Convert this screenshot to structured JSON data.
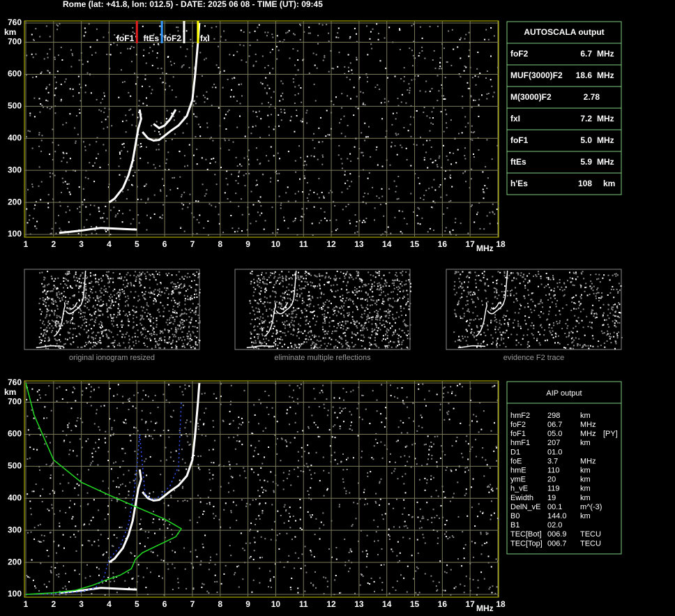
{
  "header": "Rome (lat: +41.8, lon: 012.5) - DATE: 2025 06 08 - TIME (UT): 09:45",
  "chart_data": [
    {
      "type": "line",
      "y_unit": "km",
      "x_unit": "MHz",
      "xlim": [
        1,
        18
      ],
      "xticks": [
        1,
        2,
        3,
        4,
        5,
        6,
        7,
        8,
        9,
        10,
        11,
        12,
        13,
        14,
        15,
        16,
        17,
        18
      ],
      "ylim": [
        100,
        760
      ],
      "yticks": [
        100,
        200,
        300,
        400,
        500,
        600,
        700,
        760
      ],
      "grid": true,
      "series": [
        {
          "color": "#ffffff",
          "x": [
            2.2,
            2.6,
            3.0,
            3.4,
            3.7,
            4.0,
            4.5,
            5.0
          ],
          "values": [
            105,
            108,
            112,
            117,
            120,
            119,
            117,
            115
          ]
        },
        {
          "color": "#ffffff",
          "x": [
            4.0,
            4.2,
            4.5,
            4.7,
            4.85,
            4.95,
            5.05,
            5.15,
            5.1
          ],
          "values": [
            200,
            212,
            245,
            285,
            330,
            380,
            430,
            460,
            490
          ]
        },
        {
          "color": "#ffffff",
          "x": [
            5.2,
            5.4,
            5.6,
            5.8,
            6.0,
            6.2,
            6.5,
            6.8,
            7.0,
            7.1,
            7.2,
            7.25
          ],
          "values": [
            420,
            400,
            393,
            395,
            408,
            422,
            440,
            470,
            520,
            600,
            700,
            760
          ]
        },
        {
          "color": "#ffffff",
          "x": [
            5.6,
            5.8,
            6.0,
            6.2,
            6.4
          ],
          "values": [
            445,
            432,
            440,
            460,
            490
          ]
        }
      ],
      "markers": [
        {
          "label": "foF1",
          "x": 5.0,
          "color": "#e02020"
        },
        {
          "label": "ftEs",
          "x": 5.9,
          "color": "#3399ff"
        },
        {
          "label": "foF2",
          "x": 6.7,
          "color": "#ffffff"
        },
        {
          "label": "fxI",
          "x": 7.2,
          "color": "#ffff00"
        }
      ]
    },
    {
      "type": "line",
      "y_unit": "km",
      "x_unit": "MHz",
      "xlim": [
        1,
        18
      ],
      "xticks": [
        1,
        2,
        3,
        4,
        5,
        6,
        7,
        8,
        9,
        10,
        11,
        12,
        13,
        14,
        15,
        16,
        17,
        18
      ],
      "ylim": [
        100,
        760
      ],
      "yticks": [
        100,
        200,
        300,
        400,
        500,
        600,
        700,
        760
      ],
      "grid": true,
      "series": [
        {
          "color": "#ffffff",
          "x": [
            2.2,
            2.6,
            3.0,
            3.4,
            3.7,
            4.0,
            4.5,
            5.0
          ],
          "values": [
            105,
            108,
            112,
            117,
            120,
            119,
            117,
            115
          ]
        },
        {
          "color": "#ffffff",
          "x": [
            4.0,
            4.2,
            4.5,
            4.7,
            4.85,
            4.95,
            5.05,
            5.15,
            5.1
          ],
          "values": [
            200,
            212,
            245,
            285,
            330,
            380,
            430,
            460,
            490
          ]
        },
        {
          "color": "#ffffff",
          "x": [
            5.2,
            5.4,
            5.6,
            5.8,
            6.0,
            6.2,
            6.5,
            6.8,
            7.0,
            7.1,
            7.2,
            7.25
          ],
          "values": [
            420,
            400,
            393,
            395,
            408,
            422,
            440,
            470,
            520,
            600,
            700,
            760
          ]
        },
        {
          "color": "#3355ff",
          "x": [
            1.0,
            2.0,
            3.0,
            3.5,
            3.8,
            4.0,
            4.4,
            4.7,
            4.9,
            5.0,
            5.1,
            5.3,
            5.6,
            5.9,
            6.2,
            6.5,
            6.6
          ],
          "values": [
            100,
            102,
            108,
            120,
            150,
            210,
            250,
            320,
            420,
            500,
            600,
            410,
            395,
            410,
            440,
            500,
            700
          ]
        },
        {
          "color": "#22dd22",
          "x": [
            1.0,
            1.3,
            2.0,
            3.0,
            4.0,
            5.0,
            6.0,
            6.6,
            6.4,
            5.8,
            5.2,
            4.95,
            4.8,
            4.4,
            3.9,
            3.4,
            2.8,
            2.0,
            1.0
          ],
          "values": [
            760,
            660,
            520,
            450,
            410,
            372,
            335,
            305,
            280,
            255,
            230,
            210,
            180,
            160,
            145,
            128,
            113,
            105,
            100
          ]
        }
      ]
    }
  ],
  "autoscala": {
    "title": "AUTOSCALA output",
    "rows": [
      {
        "label": "foF2",
        "value": "6.7",
        "unit": "MHz",
        "color": "#ffffff"
      },
      {
        "label": "MUF(3000)F2",
        "value": "18.6",
        "unit": "MHz",
        "color": "#ffffff"
      },
      {
        "label": "M(3000)F2",
        "value": "2.78",
        "color": "#ffffff"
      },
      {
        "label": "fxI",
        "value": "7.2",
        "unit": "MHz",
        "color": "#ffff00"
      },
      {
        "label": "foF1",
        "value": "5.0",
        "unit": "MHz",
        "color": "#e02020"
      },
      {
        "label": "ftEs",
        "value": "5.9",
        "unit": "MHz",
        "color": "#3399ff"
      },
      {
        "label": "h'Es",
        "value": "108",
        "unit": "km",
        "color": "#ffffff"
      }
    ]
  },
  "thumbnails": [
    "original ionogram resized",
    "eliminate multiple reflections",
    "evidence F2 trace"
  ],
  "aip": {
    "title": "AIP output",
    "rows": [
      [
        "hmF2",
        "298",
        "km"
      ],
      [
        "foF2",
        "06.7",
        "MHz"
      ],
      [
        "foF1",
        "05.0",
        "MHz",
        "[PY]"
      ],
      [
        "hmF1",
        "207",
        "km"
      ],
      [
        "D1",
        "01.0"
      ],
      [
        "foE",
        "3.7",
        "MHz"
      ],
      [
        "hmE",
        "110",
        "km"
      ],
      [
        "ymE",
        "20",
        "km"
      ],
      [
        "h_vE",
        "119",
        "km"
      ],
      [
        "Ewidth",
        "19",
        "km"
      ],
      [
        "DelN_vE",
        "00.1",
        "m^(-3)"
      ],
      [
        "B0",
        "144.0",
        "km"
      ],
      [
        "B1",
        "02.0"
      ],
      [
        "TEC[Bot]",
        "006.9",
        "TECU"
      ],
      [
        "TEC[Top]",
        "006.7",
        "TECU"
      ]
    ]
  }
}
